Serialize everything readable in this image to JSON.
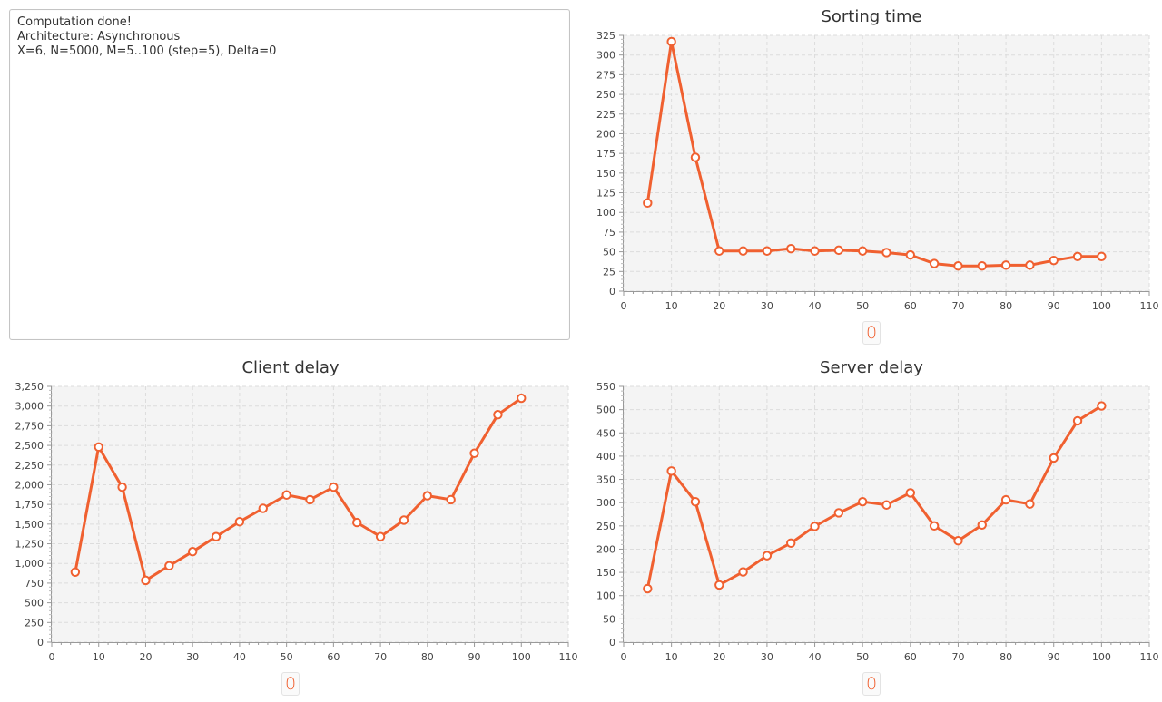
{
  "log": {
    "lines": [
      "Computation done!",
      "Architecture: Asynchronous",
      "X=6, N=5000, M=5..100 (step=5), Delta=0"
    ]
  },
  "colors": {
    "series": "#f06030",
    "plot_background": "#f4f4f4",
    "grid": "#dcdcdc"
  },
  "chart_data": [
    {
      "type": "line",
      "title": "Sorting time",
      "legend_label": "0",
      "grid": true,
      "legend_placement": "bottom-center",
      "xlim": [
        0,
        110
      ],
      "ylim": [
        0,
        325
      ],
      "x_ticks": [
        0,
        10,
        20,
        30,
        40,
        50,
        60,
        70,
        80,
        90,
        100,
        110
      ],
      "y_ticks": [
        0,
        25,
        50,
        75,
        100,
        125,
        150,
        175,
        200,
        225,
        250,
        275,
        300,
        325
      ],
      "x_tick_labels": [
        "0",
        "10",
        "20",
        "30",
        "40",
        "50",
        "60",
        "70",
        "80",
        "90",
        "100",
        "110"
      ],
      "y_tick_labels": [
        "0",
        "25",
        "50",
        "75",
        "100",
        "125",
        "150",
        "175",
        "200",
        "225",
        "250",
        "275",
        "300",
        "325"
      ],
      "series": [
        {
          "x": [
            5,
            10,
            15,
            20,
            25,
            30,
            35,
            40,
            45,
            50,
            55,
            60,
            65,
            70,
            75,
            80,
            85,
            90,
            95,
            100
          ],
          "y": [
            112,
            317,
            170,
            51,
            51,
            51,
            54,
            51,
            52,
            51,
            49,
            46,
            35,
            32,
            32,
            33,
            33,
            39,
            44,
            44
          ]
        }
      ]
    },
    {
      "type": "line",
      "title": "Client delay",
      "legend_label": "0",
      "grid": true,
      "legend_placement": "bottom-center",
      "xlim": [
        0,
        110
      ],
      "ylim": [
        0,
        3250
      ],
      "x_ticks": [
        0,
        10,
        20,
        30,
        40,
        50,
        60,
        70,
        80,
        90,
        100,
        110
      ],
      "y_ticks": [
        0,
        250,
        500,
        750,
        1000,
        1250,
        1500,
        1750,
        2000,
        2250,
        2500,
        2750,
        3000,
        3250
      ],
      "x_tick_labels": [
        "0",
        "10",
        "20",
        "30",
        "40",
        "50",
        "60",
        "70",
        "80",
        "90",
        "100",
        "110"
      ],
      "y_tick_labels": [
        "0",
        "250",
        "500",
        "750",
        "1,000",
        "1,250",
        "1,500",
        "1,750",
        "2,000",
        "2,250",
        "2,500",
        "2,750",
        "3,000",
        "3,250"
      ],
      "series": [
        {
          "x": [
            5,
            10,
            15,
            20,
            25,
            30,
            35,
            40,
            45,
            50,
            55,
            60,
            65,
            70,
            75,
            80,
            85,
            90,
            95,
            100
          ],
          "y": [
            890,
            2480,
            1970,
            785,
            970,
            1150,
            1340,
            1530,
            1700,
            1870,
            1810,
            1970,
            1520,
            1340,
            1550,
            1860,
            1810,
            2400,
            2890,
            3100
          ]
        }
      ]
    },
    {
      "type": "line",
      "title": "Server delay",
      "legend_label": "0",
      "grid": true,
      "legend_placement": "bottom-center",
      "xlim": [
        0,
        110
      ],
      "ylim": [
        0,
        550
      ],
      "x_ticks": [
        0,
        10,
        20,
        30,
        40,
        50,
        60,
        70,
        80,
        90,
        100,
        110
      ],
      "y_ticks": [
        0,
        50,
        100,
        150,
        200,
        250,
        300,
        350,
        400,
        450,
        500,
        550
      ],
      "x_tick_labels": [
        "0",
        "10",
        "20",
        "30",
        "40",
        "50",
        "60",
        "70",
        "80",
        "90",
        "100",
        "110"
      ],
      "y_tick_labels": [
        "0",
        "50",
        "100",
        "150",
        "200",
        "250",
        "300",
        "350",
        "400",
        "450",
        "500",
        "550"
      ],
      "series": [
        {
          "x": [
            5,
            10,
            15,
            20,
            25,
            30,
            35,
            40,
            45,
            50,
            55,
            60,
            65,
            70,
            75,
            80,
            85,
            90,
            95,
            100
          ],
          "y": [
            115,
            368,
            302,
            123,
            151,
            186,
            213,
            249,
            278,
            302,
            295,
            321,
            250,
            218,
            252,
            306,
            297,
            396,
            476,
            508
          ]
        }
      ]
    }
  ]
}
